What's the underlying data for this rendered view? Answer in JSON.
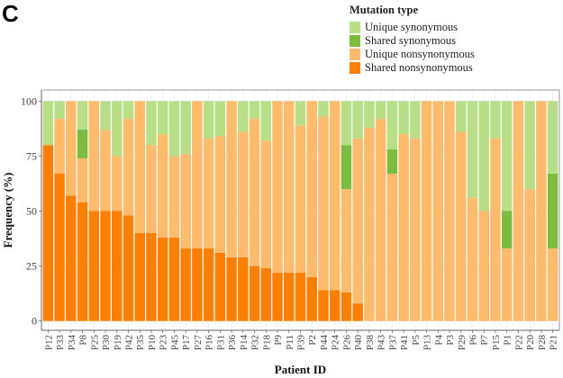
{
  "panel_label": "C",
  "chart_data": {
    "type": "bar",
    "stacked": true,
    "xlabel": "Patient ID",
    "ylabel": "Frequency (%)",
    "ylim": [
      0,
      100
    ],
    "yticks": [
      0,
      25,
      50,
      75,
      100
    ],
    "grid": true,
    "legend": {
      "title": "Mutation type",
      "placement": "top-right"
    },
    "categories": [
      "P12",
      "P33",
      "P34",
      "P8",
      "P25",
      "P30",
      "P19",
      "P42",
      "P35",
      "P10",
      "P23",
      "P45",
      "P17",
      "P27",
      "P16",
      "P31",
      "P36",
      "P14",
      "P32",
      "P18",
      "P9",
      "P11",
      "P39",
      "P2",
      "P44",
      "P24",
      "P26",
      "P40",
      "P38",
      "P43",
      "P37",
      "P41",
      "P5",
      "P13",
      "P4",
      "P3",
      "P29",
      "P6",
      "P7",
      "P15",
      "P1",
      "P22",
      "P20",
      "P28",
      "P21"
    ],
    "series": [
      {
        "name": "Shared nonsynonymous",
        "color": "#ff8000",
        "values": [
          80,
          67,
          57,
          54,
          50,
          50,
          50,
          48,
          40,
          40,
          38,
          38,
          33,
          33,
          33,
          31,
          29,
          29,
          25,
          24,
          22,
          22,
          22,
          20,
          14,
          14,
          13,
          8,
          0,
          0,
          0,
          0,
          0,
          0,
          0,
          0,
          0,
          0,
          0,
          0,
          0,
          0,
          0,
          0,
          0
        ]
      },
      {
        "name": "Unique nonsynonymous",
        "color": "#fdbb6b",
        "values": [
          0,
          25,
          43,
          20,
          50,
          37,
          25,
          44,
          60,
          40,
          47,
          37,
          43,
          67,
          50,
          53,
          71,
          57,
          67,
          58,
          78,
          78,
          67,
          80,
          79,
          86,
          47,
          75,
          88,
          92,
          67,
          85,
          83,
          100,
          100,
          100,
          86,
          56,
          50,
          83,
          33,
          100,
          60,
          100,
          33
        ]
      },
      {
        "name": "Shared synonymous",
        "color": "#7cbd41",
        "values": [
          0,
          0,
          0,
          13,
          0,
          0,
          0,
          0,
          0,
          0,
          0,
          0,
          0,
          0,
          0,
          0,
          0,
          0,
          0,
          0,
          0,
          0,
          0,
          0,
          0,
          0,
          20,
          0,
          0,
          0,
          11,
          0,
          0,
          0,
          0,
          0,
          0,
          0,
          0,
          0,
          17,
          0,
          0,
          0,
          34
        ]
      },
      {
        "name": "Unique synonymous",
        "color": "#b8df87",
        "values": [
          20,
          8,
          0,
          13,
          0,
          13,
          25,
          8,
          0,
          20,
          15,
          25,
          24,
          0,
          17,
          16,
          0,
          14,
          8,
          18,
          0,
          0,
          11,
          0,
          7,
          0,
          20,
          17,
          12,
          8,
          22,
          15,
          17,
          0,
          0,
          0,
          14,
          44,
          50,
          17,
          50,
          0,
          40,
          0,
          33
        ]
      }
    ],
    "legend_order": [
      "Unique synonymous",
      "Shared synonymous",
      "Unique nonsynonymous",
      "Shared nonsynonymous"
    ]
  }
}
